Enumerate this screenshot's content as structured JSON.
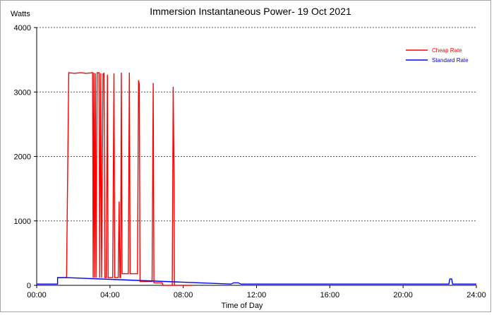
{
  "chart_data": {
    "type": "line",
    "title": "Immersion Instantaneous Power- 19 Oct 2021",
    "ylabel": "Watts",
    "xlabel": "Time of Day",
    "xlim": [
      0,
      24
    ],
    "ylim": [
      0,
      4000
    ],
    "x_ticks": [
      {
        "value": 0,
        "label": "00:00"
      },
      {
        "value": 4,
        "label": "04:00"
      },
      {
        "value": 8,
        "label": "08:00"
      },
      {
        "value": 12,
        "label": "12:00"
      },
      {
        "value": 16,
        "label": "16:00"
      },
      {
        "value": 20,
        "label": "20:00"
      },
      {
        "value": 24,
        "label": "24:00"
      }
    ],
    "y_ticks": [
      {
        "value": 0,
        "label": "0"
      },
      {
        "value": 1000,
        "label": "1000"
      },
      {
        "value": 2000,
        "label": "2000"
      },
      {
        "value": 3000,
        "label": "3000"
      },
      {
        "value": 4000,
        "label": "4000"
      }
    ],
    "grid": "horizontal dotted",
    "legend_position": "top-right",
    "series": [
      {
        "name": "Cheap Rate",
        "color": "#ff0000",
        "points": [
          [
            1.14,
            120
          ],
          [
            1.63,
            120
          ],
          [
            1.75,
            3300
          ],
          [
            2.05,
            3290
          ],
          [
            2.4,
            3300
          ],
          [
            2.7,
            3290
          ],
          [
            3.05,
            3300
          ],
          [
            3.08,
            120
          ],
          [
            3.12,
            3300
          ],
          [
            3.16,
            120
          ],
          [
            3.2,
            3290
          ],
          [
            3.24,
            120
          ],
          [
            3.3,
            3300
          ],
          [
            3.4,
            3300
          ],
          [
            3.44,
            120
          ],
          [
            3.5,
            3290
          ],
          [
            3.54,
            120
          ],
          [
            3.62,
            3280
          ],
          [
            3.68,
            3290
          ],
          [
            3.72,
            120
          ],
          [
            3.8,
            120
          ],
          [
            3.86,
            3270
          ],
          [
            3.9,
            120
          ],
          [
            4.15,
            120
          ],
          [
            4.22,
            3290
          ],
          [
            4.26,
            120
          ],
          [
            4.45,
            120
          ],
          [
            4.5,
            1300
          ],
          [
            4.54,
            120
          ],
          [
            4.58,
            120
          ],
          [
            4.62,
            3300
          ],
          [
            4.66,
            180
          ],
          [
            5.0,
            180
          ],
          [
            5.06,
            3300
          ],
          [
            5.1,
            180
          ],
          [
            5.5,
            180
          ],
          [
            5.56,
            3180
          ],
          [
            5.6,
            3120
          ],
          [
            5.64,
            60
          ],
          [
            6.3,
            60
          ],
          [
            6.36,
            3140
          ],
          [
            6.4,
            40
          ],
          [
            6.85,
            40
          ],
          [
            6.9,
            0
          ],
          [
            7.4,
            0
          ],
          [
            7.45,
            3080
          ],
          [
            7.5,
            1600
          ],
          [
            7.52,
            0
          ],
          [
            8.5,
            0
          ]
        ]
      },
      {
        "name": "Standard Rate",
        "color": "#0000ff",
        "points": [
          [
            0,
            20
          ],
          [
            1.14,
            20
          ],
          [
            1.14,
            120
          ],
          [
            1.63,
            120
          ],
          [
            10.6,
            20
          ],
          [
            10.75,
            40
          ],
          [
            11.0,
            40
          ],
          [
            11.15,
            20
          ],
          [
            11.3,
            20
          ],
          [
            22.5,
            20
          ],
          [
            22.55,
            100
          ],
          [
            22.65,
            100
          ],
          [
            22.7,
            20
          ],
          [
            24,
            20
          ]
        ]
      }
    ]
  }
}
